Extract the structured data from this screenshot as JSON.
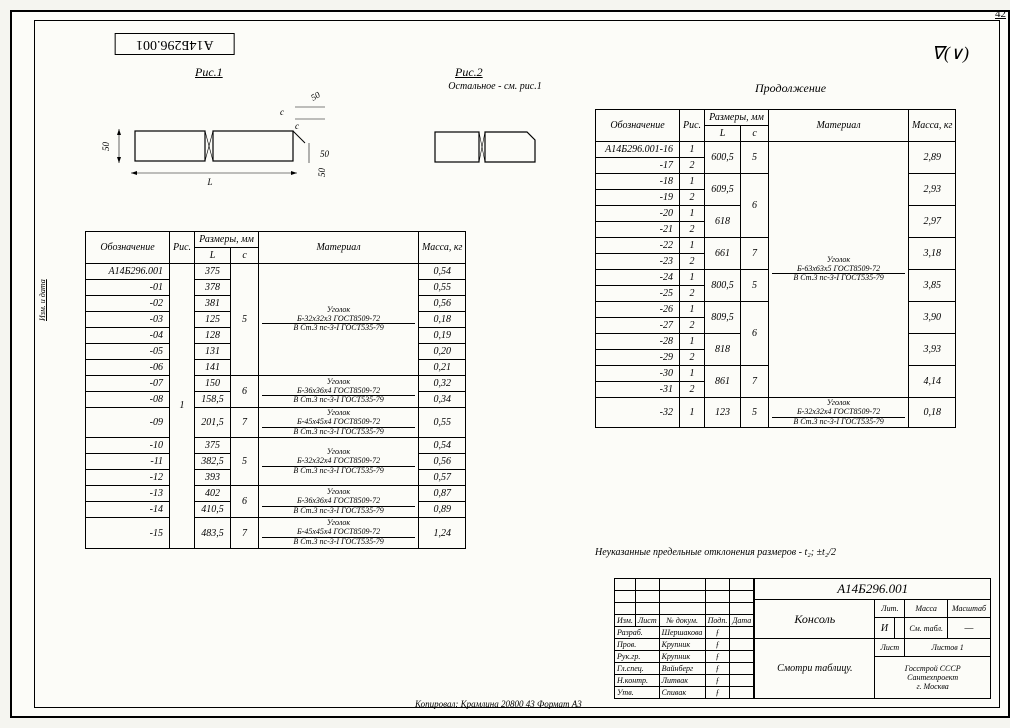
{
  "pageNumber": "42",
  "topCode": "А14Б296.001",
  "surfaceMark": "∇(∨)",
  "fig1": {
    "label": "Рис.1",
    "dimL": "L",
    "dim50a": "50",
    "dim50b": "50",
    "dim50c": "50",
    "dimC": "с",
    "dimS": "с"
  },
  "fig2": {
    "label": "Рис.2",
    "subtitle": "Остальное - см. рис.1"
  },
  "continuation": "Продолжение",
  "headers": {
    "designation": "Обозначение",
    "fig": "Рис.",
    "dims": "Размеры, мм",
    "L": "L",
    "C": "с",
    "material": "Материал",
    "mass": "Масса, кг"
  },
  "leftTable": {
    "rows": [
      {
        "d": "А14Б296.001",
        "L": "375",
        "mass": "0,54"
      },
      {
        "d": "-01",
        "L": "378",
        "mass": "0,55"
      },
      {
        "d": "-02",
        "L": "381",
        "mass": "0,56"
      },
      {
        "d": "-03",
        "L": "125",
        "mass": "0,18"
      },
      {
        "d": "-04",
        "L": "128",
        "mass": "0,19"
      },
      {
        "d": "-05",
        "L": "131",
        "mass": "0,20"
      },
      {
        "d": "-06",
        "L": "141",
        "mass": "0,21"
      },
      {
        "d": "-07",
        "L": "150",
        "mass": "0,32"
      },
      {
        "d": "-08",
        "L": "158,5",
        "mass": "0,34"
      },
      {
        "d": "-09",
        "L": "201,5",
        "mass": "0,55"
      },
      {
        "d": "-10",
        "L": "375",
        "mass": "0,54"
      },
      {
        "d": "-11",
        "L": "382,5",
        "mass": "0,56"
      },
      {
        "d": "-12",
        "L": "393",
        "mass": "0,57"
      },
      {
        "d": "-13",
        "L": "402",
        "mass": "0,87"
      },
      {
        "d": "-14",
        "L": "410,5",
        "mass": "0,89"
      },
      {
        "d": "-15",
        "L": "483,5",
        "mass": "1,24"
      }
    ],
    "cGroups": [
      {
        "span": 7,
        "val": "5"
      },
      {
        "span": 2,
        "val": "6"
      },
      {
        "span": 1,
        "val": "7"
      },
      {
        "span": 3,
        "val": "5"
      },
      {
        "span": 2,
        "val": "6"
      },
      {
        "span": 1,
        "val": "7"
      }
    ],
    "matGroups": [
      {
        "span": 7,
        "top": "Б-32х32х3 ГОСТ8509-72",
        "bot": "В Ст.3 пс-3-I ГОСТ535-79",
        "prefix": "Уголок"
      },
      {
        "span": 2,
        "top": "Б-36х36х4 ГОСТ8509-72",
        "bot": "В Ст.3 пс-3-I ГОСТ535-79",
        "prefix": "Уголок"
      },
      {
        "span": 1,
        "top": "Б-45х45х4 ГОСТ8509-72",
        "bot": "В Ст.3 пс-3-I ГОСТ535-79",
        "prefix": "Уголок"
      },
      {
        "span": 3,
        "top": "Б-32х32х4 ГОСТ8509-72",
        "bot": "В Ст.3 пс-3-I ГОСТ535-79",
        "prefix": "Уголок"
      },
      {
        "span": 2,
        "top": "Б-36х36х4 ГОСТ8509-72",
        "bot": "В Ст.3 пс-3-I ГОСТ535-79",
        "prefix": "Уголок"
      },
      {
        "span": 1,
        "top": "Б-45х45х4 ГОСТ8509-72",
        "bot": "В Ст.3 пс-3-I ГОСТ535-79",
        "prefix": "Уголок"
      }
    ],
    "figSpan": "1"
  },
  "rightTable": {
    "rows": [
      {
        "d": "А14Б296.001-16",
        "f": "1"
      },
      {
        "d": "-17",
        "f": "2"
      },
      {
        "d": "-18",
        "f": "1"
      },
      {
        "d": "-19",
        "f": "2"
      },
      {
        "d": "-20",
        "f": "1"
      },
      {
        "d": "-21",
        "f": "2"
      },
      {
        "d": "-22",
        "f": "1"
      },
      {
        "d": "-23",
        "f": "2"
      },
      {
        "d": "-24",
        "f": "1"
      },
      {
        "d": "-25",
        "f": "2"
      },
      {
        "d": "-26",
        "f": "1"
      },
      {
        "d": "-27",
        "f": "2"
      },
      {
        "d": "-28",
        "f": "1"
      },
      {
        "d": "-29",
        "f": "2"
      },
      {
        "d": "-30",
        "f": "1"
      },
      {
        "d": "-31",
        "f": "2"
      },
      {
        "d": "-32",
        "f": "1"
      }
    ],
    "lGroups": [
      {
        "span": 2,
        "val": "600,5"
      },
      {
        "span": 2,
        "val": "609,5"
      },
      {
        "span": 2,
        "val": "618"
      },
      {
        "span": 2,
        "val": "661"
      },
      {
        "span": 2,
        "val": "800,5"
      },
      {
        "span": 2,
        "val": "809,5"
      },
      {
        "span": 2,
        "val": "818"
      },
      {
        "span": 2,
        "val": "861"
      },
      {
        "span": 1,
        "val": "123"
      }
    ],
    "cGroups": [
      {
        "span": 2,
        "val": "5"
      },
      {
        "span": 4,
        "val": "6"
      },
      {
        "span": 2,
        "val": "7"
      },
      {
        "span": 2,
        "val": "5"
      },
      {
        "span": 4,
        "val": "6"
      },
      {
        "span": 2,
        "val": "7"
      },
      {
        "span": 1,
        "val": "5"
      }
    ],
    "massGroups": [
      {
        "span": 2,
        "val": "2,89"
      },
      {
        "span": 2,
        "val": "2,93"
      },
      {
        "span": 2,
        "val": "2,97"
      },
      {
        "span": 2,
        "val": "3,18"
      },
      {
        "span": 2,
        "val": "3,85"
      },
      {
        "span": 2,
        "val": "3,90"
      },
      {
        "span": 2,
        "val": "3,93"
      },
      {
        "span": 2,
        "val": "4,14"
      },
      {
        "span": 1,
        "val": "0,18"
      }
    ],
    "matGroups": [
      {
        "span": 16,
        "top": "Б-63х63х5 ГОСТ8509-72",
        "bot": "В Ст.3 пс-3-I ГОСТ535-79",
        "prefix": "Уголок"
      },
      {
        "span": 1,
        "top": "Б-32х32х4 ГОСТ8509-72",
        "bot": "В Ст.3 пс-3-I ГОСТ535-79",
        "prefix": "Уголок"
      }
    ]
  },
  "noteLine": "Неуказанные предельные отклонения размеров - t₂; ±t₂/2",
  "titleblock": {
    "code": "А14Б296.001",
    "name": "Консоль",
    "subname": "Смотри таблицу.",
    "litLabel": "Лит.",
    "massLabel": "Масса",
    "scaleLabel": "Масштаб",
    "massVal": "См. табл.",
    "scaleVal": "—",
    "litI": "И",
    "sheetLabel": "Лист",
    "sheetsLabel": "Листов 1",
    "org": "Госстрой СССР\nСантехпроект\nг. Москва",
    "rolesHeader": [
      "Изм.",
      "Лист",
      "№ докум.",
      "Подп.",
      "Дата"
    ],
    "roles": [
      {
        "r": "Разраб.",
        "n": "Шершакова"
      },
      {
        "r": "Пров.",
        "n": "Крупник"
      },
      {
        "r": "Рук.гр.",
        "n": "Крупник"
      },
      {
        "r": "Гл.спец.",
        "n": "Вайнберг"
      },
      {
        "r": "Н.контр.",
        "n": "Литвак"
      },
      {
        "r": "Утв.",
        "n": "Спивак"
      }
    ]
  },
  "footer": "Копировал: Крамлина 20800   43 Формат А3",
  "sideLabel": "Изм. и дата"
}
